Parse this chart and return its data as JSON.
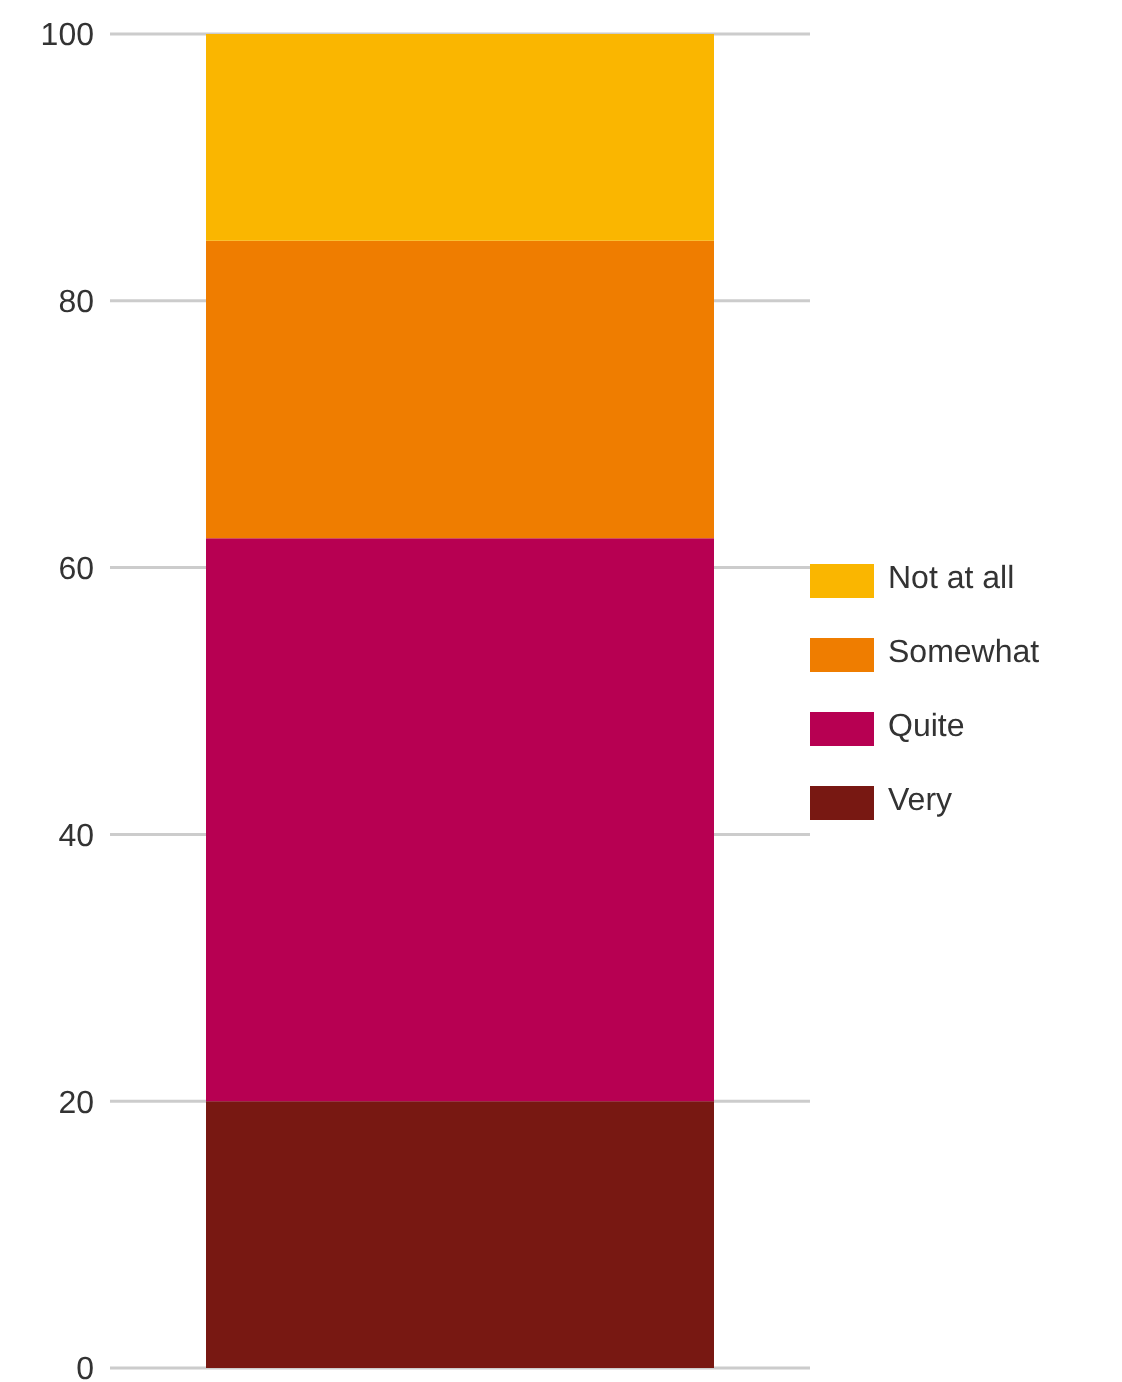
{
  "chart_data": {
    "type": "bar",
    "stacked": true,
    "categories": [
      null
    ],
    "series": [
      {
        "name": "Very",
        "color": "#781812",
        "values": [
          20
        ]
      },
      {
        "name": "Quite",
        "color": "#b70052",
        "values": [
          42.2
        ]
      },
      {
        "name": "Somewhat",
        "color": "#ef7d00",
        "values": [
          22.3
        ]
      },
      {
        "name": "Not at all",
        "color": "#fab600",
        "values": [
          15.5
        ]
      }
    ],
    "ylim": [
      0,
      100
    ],
    "yticks": [
      0,
      20,
      40,
      60,
      80,
      100
    ],
    "grid": "y",
    "legend": "right"
  }
}
